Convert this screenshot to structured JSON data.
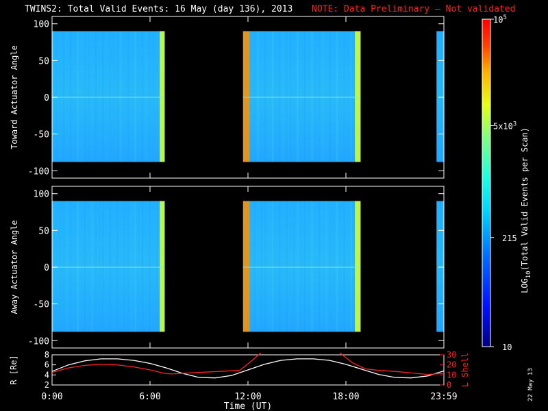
{
  "title": {
    "main": "TWINS2: Total Valid Events: 16 May (day 136), 2013",
    "note": "NOTE: Data Preliminary – Not validated"
  },
  "footer_stamp": "22 May 13",
  "chart_data": [
    {
      "type": "heatmap",
      "panel": "toward",
      "ylabel": "Toward Actuator Angle",
      "yticks": [
        "100",
        "50",
        "0",
        "-50",
        "-100"
      ],
      "ytick_values": [
        100,
        50,
        0,
        -50,
        -100
      ],
      "ylim": [
        -110,
        110
      ],
      "xlim_hours": [
        0,
        24
      ],
      "y_extent": [
        -88,
        90
      ],
      "data_intervals_hours": [
        [
          0.0,
          6.9
        ],
        [
          11.7,
          18.9
        ],
        [
          23.55,
          24.0
        ]
      ],
      "enhanced_bands_hours": [
        [
          11.7,
          12.1,
          "orange"
        ],
        [
          6.6,
          6.9,
          "yellow"
        ],
        [
          18.55,
          18.9,
          "yellow"
        ]
      ]
    },
    {
      "type": "heatmap",
      "panel": "away",
      "ylabel": "Away Actuator Angle",
      "yticks": [
        "100",
        "50",
        "0",
        "-50",
        "-100"
      ],
      "ytick_values": [
        100,
        50,
        0,
        -50,
        -100
      ],
      "ylim": [
        -110,
        110
      ],
      "xlim_hours": [
        0,
        24
      ],
      "y_extent": [
        -88,
        90
      ],
      "data_intervals_hours": [
        [
          0.0,
          6.9
        ],
        [
          11.7,
          18.9
        ],
        [
          23.55,
          24.0
        ]
      ],
      "enhanced_bands_hours": [
        [
          11.7,
          12.1,
          "orange"
        ],
        [
          6.6,
          6.9,
          "yellow"
        ],
        [
          18.55,
          18.9,
          "yellow"
        ]
      ]
    },
    {
      "type": "line",
      "panel": "ephemeris",
      "ylabel": "R [Re]",
      "yticks": [
        "8",
        "6",
        "4",
        "2"
      ],
      "ytick_values": [
        8,
        6,
        4,
        2
      ],
      "ylim": [
        2,
        8
      ],
      "y2label": "L Shell",
      "y2ticks": [
        "30",
        "20",
        "10",
        "0"
      ],
      "y2tick_values": [
        30,
        20,
        10,
        0
      ],
      "y2lim": [
        0,
        30
      ],
      "xlabel": "Time (UT)",
      "xticks": [
        "0:00",
        "6:00",
        "12:00",
        "18:00",
        "23:59"
      ],
      "xtick_values": [
        0,
        6,
        12,
        18,
        24
      ],
      "series": [
        {
          "name": "R [Re]",
          "axis": "left",
          "color": "#ffffff",
          "x": [
            0,
            1,
            2,
            3,
            4,
            5,
            6,
            7,
            8,
            9,
            10,
            11,
            12,
            13,
            14,
            15,
            16,
            17,
            18,
            19,
            20,
            21,
            22,
            23,
            24
          ],
          "y": [
            4.7,
            6.0,
            6.8,
            7.2,
            7.2,
            6.9,
            6.3,
            5.4,
            4.3,
            3.5,
            3.4,
            3.9,
            5.0,
            6.1,
            6.9,
            7.2,
            7.2,
            6.9,
            6.1,
            5.1,
            4.1,
            3.5,
            3.4,
            3.8,
            4.8
          ]
        },
        {
          "name": "L Shell",
          "axis": "right",
          "color": "#ff2020",
          "x": [
            0,
            1,
            2,
            3,
            4,
            5,
            6,
            6.9,
            7.3,
            9,
            11.5,
            12.3,
            13,
            17.4,
            18.4,
            19.2,
            20,
            21,
            22,
            23,
            24
          ],
          "y": [
            12.5,
            17,
            19.5,
            20.5,
            20,
            18,
            15,
            11.5,
            11,
            12.5,
            14.5,
            25,
            35,
            35,
            22,
            16,
            14.5,
            13.5,
            12,
            10.5,
            11.5
          ]
        }
      ]
    },
    {
      "type": "colorbar",
      "label": "LOG10(Total Valid Events per Scan)",
      "ticks": [
        "10",
        "215",
        "5x10^3",
        "10^5"
      ],
      "tick_values": [
        10,
        215,
        5000,
        100000
      ],
      "range": [
        10,
        100000
      ],
      "scale": "log"
    }
  ]
}
